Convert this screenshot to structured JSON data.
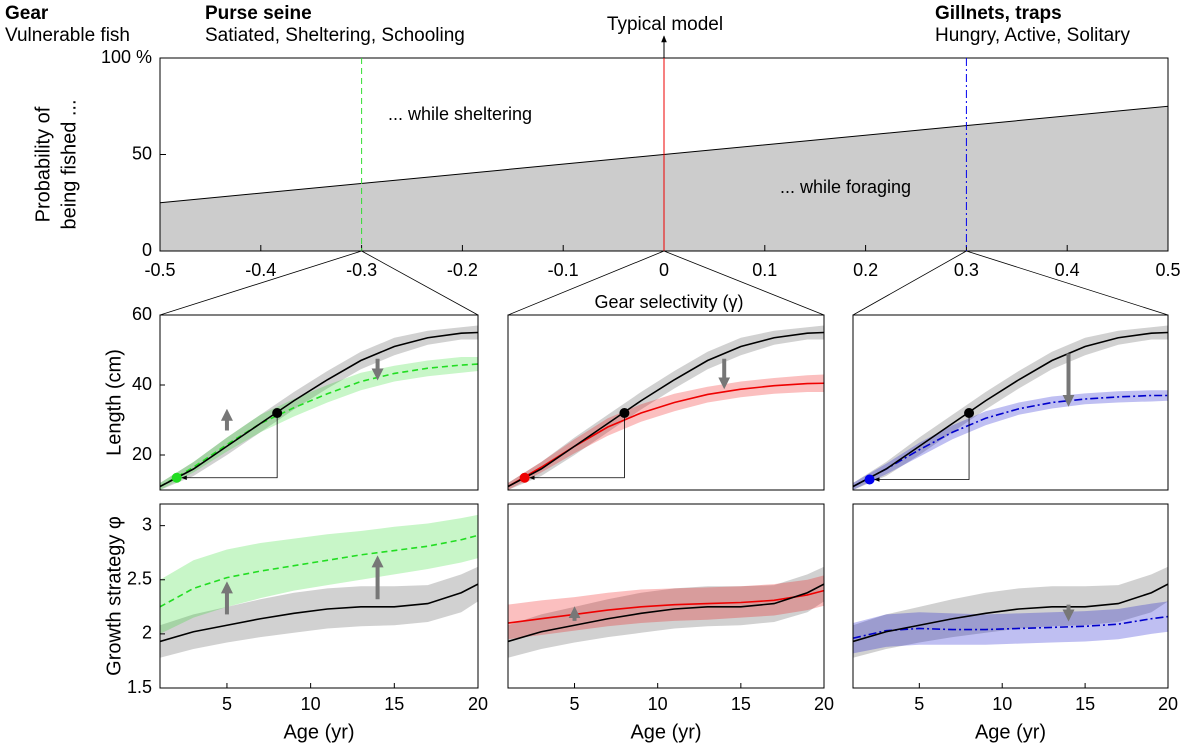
{
  "header": [
    {
      "text": "Gear",
      "color": "#ee0000",
      "bold": true
    },
    {
      "text": "Vulnerable fish",
      "color": "#0000ee",
      "bold": false
    },
    {
      "text": "Purse seine",
      "color": "#ee0000",
      "bold": true
    },
    {
      "text": "Satiated, Sheltering, Schooling",
      "color": "#0000ee",
      "bold": false
    },
    {
      "text": "Typical model",
      "color": "#000000",
      "bold": false
    },
    {
      "text": "Gillnets, traps",
      "color": "#ee0000",
      "bold": true
    },
    {
      "text": "Hungry, Active, Solitary",
      "color": "#0000ee",
      "bold": false
    }
  ],
  "chart_data": [
    {
      "type": "area",
      "x": [
        -0.5,
        0.5
      ],
      "values": [
        25,
        75
      ],
      "color": "#cccccc",
      "xlim": [
        -0.5,
        0.5
      ],
      "ylim": [
        0,
        100
      ],
      "xticks": [
        -0.5,
        -0.4,
        -0.3,
        -0.2,
        -0.1,
        0,
        0.1,
        0.2,
        0.3,
        0.4,
        0.5
      ],
      "yticks": [
        0,
        50,
        {
          "value": 100,
          "label": "100 %"
        }
      ],
      "xlabel": "Gear selectivity (γ)",
      "ylabel": [
        "Probability of",
        "being fished ..."
      ],
      "annotations": [
        "... while sheltering",
        "... while foraging"
      ],
      "vlines": [
        {
          "x": -0.3,
          "color": "#33dd33",
          "style": "dashed"
        },
        {
          "x": 0,
          "color": "#ee0000",
          "style": "solid"
        },
        {
          "x": 0.3,
          "color": "#0000ee",
          "style": "dashdot"
        }
      ]
    },
    {
      "type": "line",
      "x": [
        1,
        3,
        5,
        7,
        9,
        11,
        13,
        15,
        17,
        19,
        20
      ],
      "xlim": [
        1,
        20
      ],
      "ylim": [
        10,
        60
      ],
      "yticks": [
        20,
        40,
        60
      ],
      "ylabel": "Length (cm)",
      "series": [
        {
          "color": "#000000",
          "style": "solid",
          "values": [
            11,
            16,
            22.5,
            29,
            35.5,
            41.5,
            47,
            51,
            53.5,
            54.8,
            55
          ],
          "lower": [
            10,
            14,
            20,
            26.5,
            33,
            39,
            44.5,
            48.5,
            51.5,
            53,
            53
          ],
          "upper": [
            12,
            18,
            25,
            31.5,
            38,
            44,
            49.5,
            53.5,
            55.5,
            56.5,
            57
          ]
        },
        {
          "color": "#22dd22",
          "style": "dashed",
          "values": [
            11,
            16.5,
            23,
            29,
            33.5,
            37.5,
            41,
            43.3,
            44.8,
            45.7,
            46
          ],
          "lower": [
            10,
            15,
            21,
            26.5,
            31,
            35,
            38.5,
            41,
            42.5,
            43.5,
            44
          ],
          "upper": [
            12,
            18,
            25,
            31.5,
            36,
            40,
            43.5,
            45.5,
            47,
            48,
            48
          ]
        }
      ],
      "points": [
        {
          "x": 8,
          "y": 32,
          "color": "#000000"
        },
        {
          "x": 2,
          "y": 13.5,
          "color": "#22dd22"
        }
      ],
      "arrows": [
        {
          "x": 5,
          "from": 27,
          "to": 31.5
        },
        {
          "x": 14,
          "from": 47.5,
          "to": 43
        }
      ]
    },
    {
      "type": "line",
      "x": [
        1,
        3,
        5,
        7,
        9,
        11,
        13,
        15,
        17,
        19,
        20
      ],
      "xlim": [
        1,
        20
      ],
      "ylim": [
        10,
        60
      ],
      "series": [
        {
          "color": "#000000",
          "style": "solid",
          "values": [
            11,
            16,
            22.5,
            29,
            35.5,
            41.5,
            47,
            51,
            53.5,
            54.8,
            55
          ],
          "lower": [
            10,
            14,
            20,
            26.5,
            33,
            39,
            44.5,
            48.5,
            51.5,
            53,
            53
          ],
          "upper": [
            12,
            18,
            25,
            31.5,
            38,
            44,
            49.5,
            53.5,
            55.5,
            56.5,
            57
          ]
        },
        {
          "color": "#ee0000",
          "style": "solid",
          "values": [
            11,
            16.5,
            22.5,
            28,
            32,
            35,
            37.3,
            38.8,
            39.8,
            40.4,
            40.5
          ],
          "lower": [
            10,
            15,
            20.5,
            25.5,
            29.5,
            32.5,
            35,
            36.5,
            37.5,
            38,
            38
          ],
          "upper": [
            12,
            18,
            24.5,
            30.5,
            34.5,
            37.5,
            39.5,
            41,
            42,
            42.8,
            43
          ]
        }
      ],
      "points": [
        {
          "x": 8,
          "y": 32,
          "color": "#000000"
        },
        {
          "x": 2,
          "y": 13.5,
          "color": "#ee0000"
        }
      ],
      "arrows": [
        {
          "x": 14,
          "from": 47.5,
          "to": 40.5
        }
      ]
    },
    {
      "type": "line",
      "x": [
        1,
        3,
        5,
        7,
        9,
        11,
        13,
        15,
        17,
        19,
        20
      ],
      "xlim": [
        1,
        20
      ],
      "ylim": [
        10,
        60
      ],
      "series": [
        {
          "color": "#000000",
          "style": "solid",
          "values": [
            11,
            16,
            22.5,
            29,
            35.5,
            41.5,
            47,
            51,
            53.5,
            54.8,
            55
          ],
          "lower": [
            10,
            14,
            20,
            26.5,
            33,
            39,
            44.5,
            48.5,
            51.5,
            53,
            53
          ],
          "upper": [
            12,
            18,
            25,
            31.5,
            38,
            44,
            49.5,
            53.5,
            55.5,
            56.5,
            57
          ]
        },
        {
          "color": "#0000cc",
          "style": "dashdot",
          "values": [
            11,
            16,
            21.5,
            26.5,
            30.5,
            33.2,
            35,
            36,
            36.6,
            37,
            37
          ],
          "lower": [
            10,
            14.5,
            19.5,
            24.5,
            28.5,
            31.5,
            33.3,
            34.5,
            35,
            35.3,
            35.5
          ],
          "upper": [
            12,
            17.5,
            23.5,
            28.5,
            32.5,
            35,
            36.7,
            37.6,
            38.2,
            38.5,
            38.5
          ]
        }
      ],
      "points": [
        {
          "x": 8,
          "y": 32,
          "color": "#000000"
        },
        {
          "x": 2,
          "y": 13,
          "color": "#0000ee"
        }
      ],
      "arrows": [
        {
          "x": 14,
          "from": 49,
          "to": 35.5
        }
      ]
    },
    {
      "type": "line",
      "x": [
        1,
        3,
        5,
        7,
        9,
        11,
        13,
        15,
        17,
        19,
        20
      ],
      "xlim": [
        1,
        20
      ],
      "ylim": [
        1.5,
        3.2
      ],
      "yticks": [
        1.5,
        2,
        2.5,
        3
      ],
      "xticks": [
        5,
        10,
        15,
        20
      ],
      "ylabel": "Growth strategy φ",
      "xlabel": "Age (yr)",
      "series": [
        {
          "color": "#000000",
          "style": "solid",
          "values": [
            1.93,
            2.02,
            2.08,
            2.14,
            2.19,
            2.23,
            2.25,
            2.25,
            2.28,
            2.38,
            2.46
          ],
          "lower": [
            1.78,
            1.86,
            1.92,
            1.97,
            2.01,
            2.05,
            2.07,
            2.08,
            2.11,
            2.2,
            2.3
          ],
          "upper": [
            2.08,
            2.18,
            2.25,
            2.32,
            2.38,
            2.42,
            2.44,
            2.44,
            2.45,
            2.55,
            2.62
          ]
        },
        {
          "color": "#22dd22",
          "style": "dashed",
          "values": [
            2.25,
            2.42,
            2.52,
            2.58,
            2.63,
            2.68,
            2.73,
            2.77,
            2.81,
            2.87,
            2.91
          ],
          "lower": [
            2.0,
            2.15,
            2.25,
            2.33,
            2.4,
            2.45,
            2.5,
            2.55,
            2.6,
            2.66,
            2.7
          ],
          "upper": [
            2.5,
            2.68,
            2.78,
            2.84,
            2.88,
            2.92,
            2.95,
            2.99,
            3.02,
            3.07,
            3.1
          ]
        }
      ],
      "arrows": [
        {
          "x": 5,
          "from": 2.18,
          "to": 2.43
        },
        {
          "x": 14,
          "from": 2.32,
          "to": 2.67
        }
      ]
    },
    {
      "type": "line",
      "x": [
        1,
        3,
        5,
        7,
        9,
        11,
        13,
        15,
        17,
        19,
        20
      ],
      "xlim": [
        1,
        20
      ],
      "ylim": [
        1.5,
        3.2
      ],
      "xticks": [
        5,
        10,
        15,
        20
      ],
      "xlabel": "Age (yr)",
      "series": [
        {
          "color": "#000000",
          "style": "solid",
          "values": [
            1.93,
            2.02,
            2.08,
            2.14,
            2.19,
            2.23,
            2.25,
            2.25,
            2.28,
            2.38,
            2.46
          ],
          "lower": [
            1.78,
            1.86,
            1.92,
            1.97,
            2.01,
            2.05,
            2.07,
            2.08,
            2.11,
            2.2,
            2.3
          ],
          "upper": [
            2.08,
            2.18,
            2.25,
            2.32,
            2.38,
            2.42,
            2.44,
            2.44,
            2.45,
            2.55,
            2.62
          ]
        },
        {
          "color": "#ee0000",
          "style": "solid",
          "values": [
            2.1,
            2.14,
            2.18,
            2.22,
            2.25,
            2.27,
            2.28,
            2.29,
            2.31,
            2.36,
            2.4
          ],
          "lower": [
            1.95,
            1.99,
            2.03,
            2.07,
            2.1,
            2.12,
            2.13,
            2.15,
            2.17,
            2.22,
            2.26
          ],
          "upper": [
            2.27,
            2.31,
            2.34,
            2.38,
            2.41,
            2.42,
            2.43,
            2.44,
            2.46,
            2.5,
            2.54
          ]
        }
      ],
      "arrows": [
        {
          "x": 5,
          "from": 2.12,
          "to": 2.2
        }
      ]
    },
    {
      "type": "line",
      "x": [
        1,
        3,
        5,
        7,
        9,
        11,
        13,
        15,
        17,
        19,
        20
      ],
      "xlim": [
        1,
        20
      ],
      "ylim": [
        1.5,
        3.2
      ],
      "xticks": [
        5,
        10,
        15,
        20
      ],
      "xlabel": "Age (yr)",
      "series": [
        {
          "color": "#000000",
          "style": "solid",
          "values": [
            1.93,
            2.02,
            2.08,
            2.14,
            2.19,
            2.23,
            2.25,
            2.25,
            2.28,
            2.38,
            2.46
          ],
          "lower": [
            1.78,
            1.86,
            1.92,
            1.97,
            2.01,
            2.05,
            2.07,
            2.08,
            2.11,
            2.2,
            2.3
          ],
          "upper": [
            2.08,
            2.18,
            2.25,
            2.32,
            2.38,
            2.42,
            2.44,
            2.44,
            2.45,
            2.55,
            2.62
          ]
        },
        {
          "color": "#0000cc",
          "style": "dashdot",
          "values": [
            1.96,
            2.03,
            2.05,
            2.04,
            2.04,
            2.05,
            2.06,
            2.07,
            2.09,
            2.14,
            2.16
          ],
          "lower": [
            1.82,
            1.88,
            1.9,
            1.9,
            1.9,
            1.91,
            1.92,
            1.93,
            1.95,
            2.0,
            2.02
          ],
          "upper": [
            2.1,
            2.18,
            2.2,
            2.19,
            2.18,
            2.19,
            2.2,
            2.21,
            2.23,
            2.28,
            2.3
          ]
        }
      ],
      "arrows": [
        {
          "x": 14,
          "from": 2.27,
          "to": 2.17
        }
      ]
    }
  ]
}
